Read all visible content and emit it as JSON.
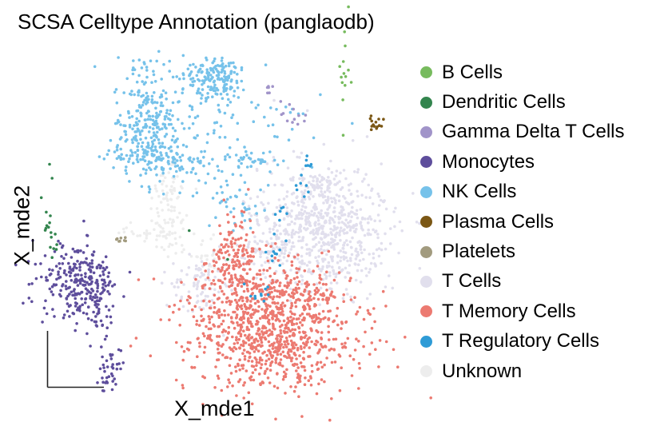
{
  "chart_data": {
    "type": "scatter",
    "title": "SCSA Celltype Annotation (panglaodb)",
    "xlabel": "X_mde1",
    "ylabel": "X_mde2",
    "legend_position": "right",
    "axis_style": "short L-shaped axis arrows, no ticks, no grid",
    "series": [
      {
        "name": "B Cells",
        "color": "#77bb5e",
        "clusters": [
          [
            431,
            100,
            5,
            26,
            14
          ]
        ]
      },
      {
        "name": "Dendritic Cells",
        "color": "#33854e",
        "clusters": [
          [
            60,
            270,
            3,
            28,
            12
          ],
          [
            66,
            312,
            3,
            8,
            6
          ],
          [
            237,
            288,
            2,
            2,
            1
          ],
          [
            287,
            325,
            2,
            2,
            1
          ]
        ]
      },
      {
        "name": "Gamma Delta T Cells",
        "color": "#a194c9",
        "clusters": [
          [
            336,
            112,
            4,
            4,
            6
          ],
          [
            358,
            133,
            6,
            6,
            5
          ],
          [
            372,
            150,
            6,
            4,
            7
          ]
        ]
      },
      {
        "name": "Monocytes",
        "color": "#5e4e9c",
        "clusters": [
          [
            100,
            352,
            24,
            22,
            260
          ],
          [
            122,
            397,
            10,
            12,
            25
          ],
          [
            138,
            460,
            7,
            16,
            40
          ]
        ]
      },
      {
        "name": "NK Cells",
        "color": "#76c2ea",
        "clusters": [
          [
            270,
            98,
            20,
            12,
            160
          ],
          [
            183,
            155,
            20,
            34,
            230
          ],
          [
            185,
            195,
            25,
            12,
            80
          ],
          [
            240,
            205,
            30,
            10,
            60
          ],
          [
            320,
            200,
            12,
            6,
            30
          ],
          [
            300,
            155,
            55,
            30,
            60
          ],
          [
            230,
            130,
            35,
            25,
            50
          ],
          [
            285,
            245,
            20,
            15,
            30
          ],
          [
            310,
            270,
            12,
            12,
            15
          ]
        ]
      },
      {
        "name": "Plasma Cells",
        "color": "#7b5715",
        "clusters": [
          [
            470,
            154,
            6,
            6,
            15
          ]
        ]
      },
      {
        "name": "Platelets",
        "color": "#a29b7f",
        "clusters": [
          [
            151,
            298,
            6,
            2,
            8
          ]
        ]
      },
      {
        "name": "T Cells",
        "color": "#e1dfed",
        "clusters": [
          [
            405,
            285,
            40,
            38,
            700
          ],
          [
            400,
            232,
            12,
            8,
            40
          ],
          [
            250,
            358,
            18,
            18,
            90
          ],
          [
            330,
            312,
            20,
            12,
            60
          ]
        ]
      },
      {
        "name": "T Memory Cells",
        "color": "#ec7a71",
        "clusters": [
          [
            340,
            415,
            55,
            38,
            900
          ],
          [
            295,
            330,
            18,
            30,
            180
          ],
          [
            340,
            360,
            20,
            12,
            60
          ],
          [
            390,
            370,
            16,
            12,
            50
          ]
        ]
      },
      {
        "name": "T Regulatory Cells",
        "color": "#2e9bd6",
        "clusters": [
          [
            385,
            202,
            3,
            6,
            6
          ],
          [
            377,
            232,
            5,
            10,
            7
          ],
          [
            355,
            265,
            5,
            8,
            6
          ],
          [
            345,
            318,
            5,
            8,
            10
          ],
          [
            325,
            368,
            8,
            8,
            10
          ]
        ]
      },
      {
        "name": "Unknown",
        "color": "#ededed",
        "clusters": [
          [
            212,
            262,
            12,
            35,
            100
          ],
          [
            185,
            292,
            25,
            4,
            25
          ],
          [
            258,
            318,
            12,
            14,
            20
          ]
        ]
      }
    ]
  }
}
